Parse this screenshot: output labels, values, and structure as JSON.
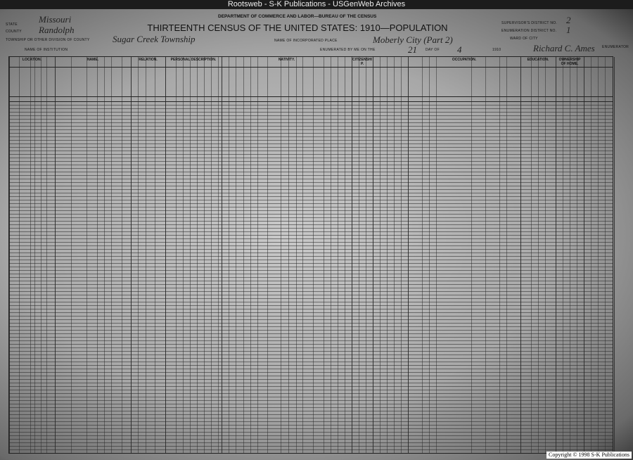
{
  "window_title": "Rootsweb - S-K Publications - USGenWeb Archives",
  "form": {
    "department": "DEPARTMENT OF COMMERCE AND LABOR—BUREAU OF THE CENSUS",
    "title": "THIRTEENTH CENSUS OF THE UNITED STATES: 1910—POPULATION",
    "labels": {
      "state": "STATE",
      "county": "COUNTY",
      "township": "TOWNSHIP OR OTHER DIVISION OF COUNTY",
      "institution": "NAME OF INSTITUTION",
      "incorporated_place": "NAME OF INCORPORATED PLACE",
      "enumerated": "ENUMERATED BY ME ON THE",
      "day_of": "DAY OF",
      "year_suffix": "1910",
      "supervisor": "SUPERVISOR'S DISTRICT NO.",
      "enumeration": "ENUMERATION DISTRICT NO.",
      "ward": "WARD OF CITY",
      "enumerator": "ENUMERATOR"
    },
    "values": {
      "state": "Missouri",
      "county": "Randolph",
      "township": "Sugar Creek Township",
      "incorporated_place": "Moberly City (Part 2)",
      "day": "21",
      "month": "4",
      "supervisor": "2",
      "enumeration": "1",
      "enumerator": "Richard C. Ames"
    }
  },
  "sections": [
    "LOCATION.",
    "NAME.",
    "RELATION.",
    "PERSONAL DESCRIPTION.",
    "NATIVITY.",
    "CITIZENSHIP.",
    "OCCUPATION.",
    "EDUCATION.",
    "OWNERSHIP OF HOME."
  ],
  "copyright": "Copyright © 1998 S-K Publications"
}
